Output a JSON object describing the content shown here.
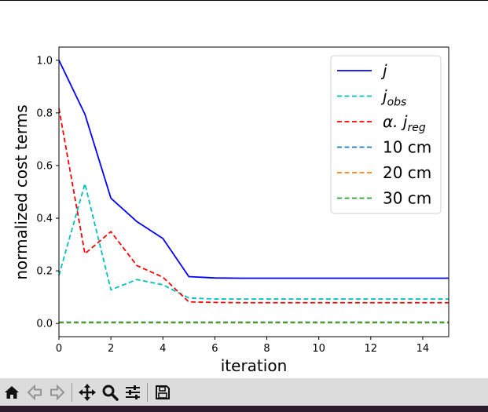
{
  "toolbar": {
    "items": [
      "home-icon",
      "back-icon",
      "forward-icon",
      "pan-icon",
      "zoom-icon",
      "configure-subplots-icon",
      "save-icon"
    ]
  },
  "chart_data": {
    "type": "line",
    "title": "",
    "xlabel": "iteration",
    "ylabel": "normalized cost terms",
    "xlim": [
      0,
      15
    ],
    "ylim": [
      -0.05,
      1.05
    ],
    "xticks": [
      0,
      2,
      4,
      6,
      8,
      10,
      12,
      14
    ],
    "xtick_labels": [
      "0",
      "2",
      "4",
      "6",
      "8",
      "10",
      "12",
      "14"
    ],
    "yticks": [
      0.0,
      0.2,
      0.4,
      0.6,
      0.8,
      1.0
    ],
    "ytick_labels": [
      "0.0",
      "0.2",
      "0.4",
      "0.6",
      "0.8",
      "1.0"
    ],
    "grid": false,
    "legend_position": "top-right",
    "x": [
      0,
      1,
      2,
      3,
      4,
      5,
      6,
      7,
      8,
      9,
      10,
      11,
      12,
      13,
      14,
      15
    ],
    "series": [
      {
        "name": "j",
        "name_main": "j",
        "name_sub": "",
        "color": "#0000ff",
        "style": "solid",
        "values": [
          1.0,
          0.795,
          0.476,
          0.387,
          0.323,
          0.178,
          0.173,
          0.172,
          0.172,
          0.172,
          0.172,
          0.172,
          0.172,
          0.172,
          0.172,
          0.172
        ]
      },
      {
        "name": "j_obs",
        "name_main": "j",
        "name_sub": "obs",
        "color": "#00bfbf",
        "style": "dashed",
        "values": [
          0.183,
          0.531,
          0.128,
          0.167,
          0.147,
          0.097,
          0.093,
          0.093,
          0.093,
          0.093,
          0.093,
          0.093,
          0.093,
          0.093,
          0.093,
          0.093
        ]
      },
      {
        "name": "α. j_reg",
        "name_main": "α. j",
        "name_sub": "reg",
        "color": "#ff0000",
        "style": "dashed",
        "values": [
          0.817,
          0.265,
          0.349,
          0.22,
          0.176,
          0.082,
          0.08,
          0.079,
          0.079,
          0.079,
          0.079,
          0.079,
          0.079,
          0.079,
          0.079,
          0.079
        ]
      },
      {
        "name": "10 cm",
        "name_main": "10 cm",
        "name_sub": "",
        "color": "#1f77b4",
        "style": "dashed",
        "values": [
          0.005,
          0.005,
          0.005,
          0.005,
          0.005,
          0.005,
          0.005,
          0.005,
          0.005,
          0.005,
          0.005,
          0.005,
          0.005,
          0.005,
          0.005,
          0.005
        ]
      },
      {
        "name": "20 cm",
        "name_main": "20 cm",
        "name_sub": "",
        "color": "#ff7f0e",
        "style": "dashed",
        "values": [
          0.004,
          0.004,
          0.004,
          0.004,
          0.004,
          0.004,
          0.004,
          0.004,
          0.004,
          0.004,
          0.004,
          0.004,
          0.004,
          0.004,
          0.004,
          0.004
        ]
      },
      {
        "name": "30 cm",
        "name_main": "30 cm",
        "name_sub": "",
        "color": "#2ca02c",
        "style": "dashed",
        "values": [
          0.003,
          0.003,
          0.003,
          0.003,
          0.003,
          0.003,
          0.003,
          0.003,
          0.003,
          0.003,
          0.003,
          0.003,
          0.003,
          0.003,
          0.003,
          0.003
        ]
      }
    ]
  }
}
